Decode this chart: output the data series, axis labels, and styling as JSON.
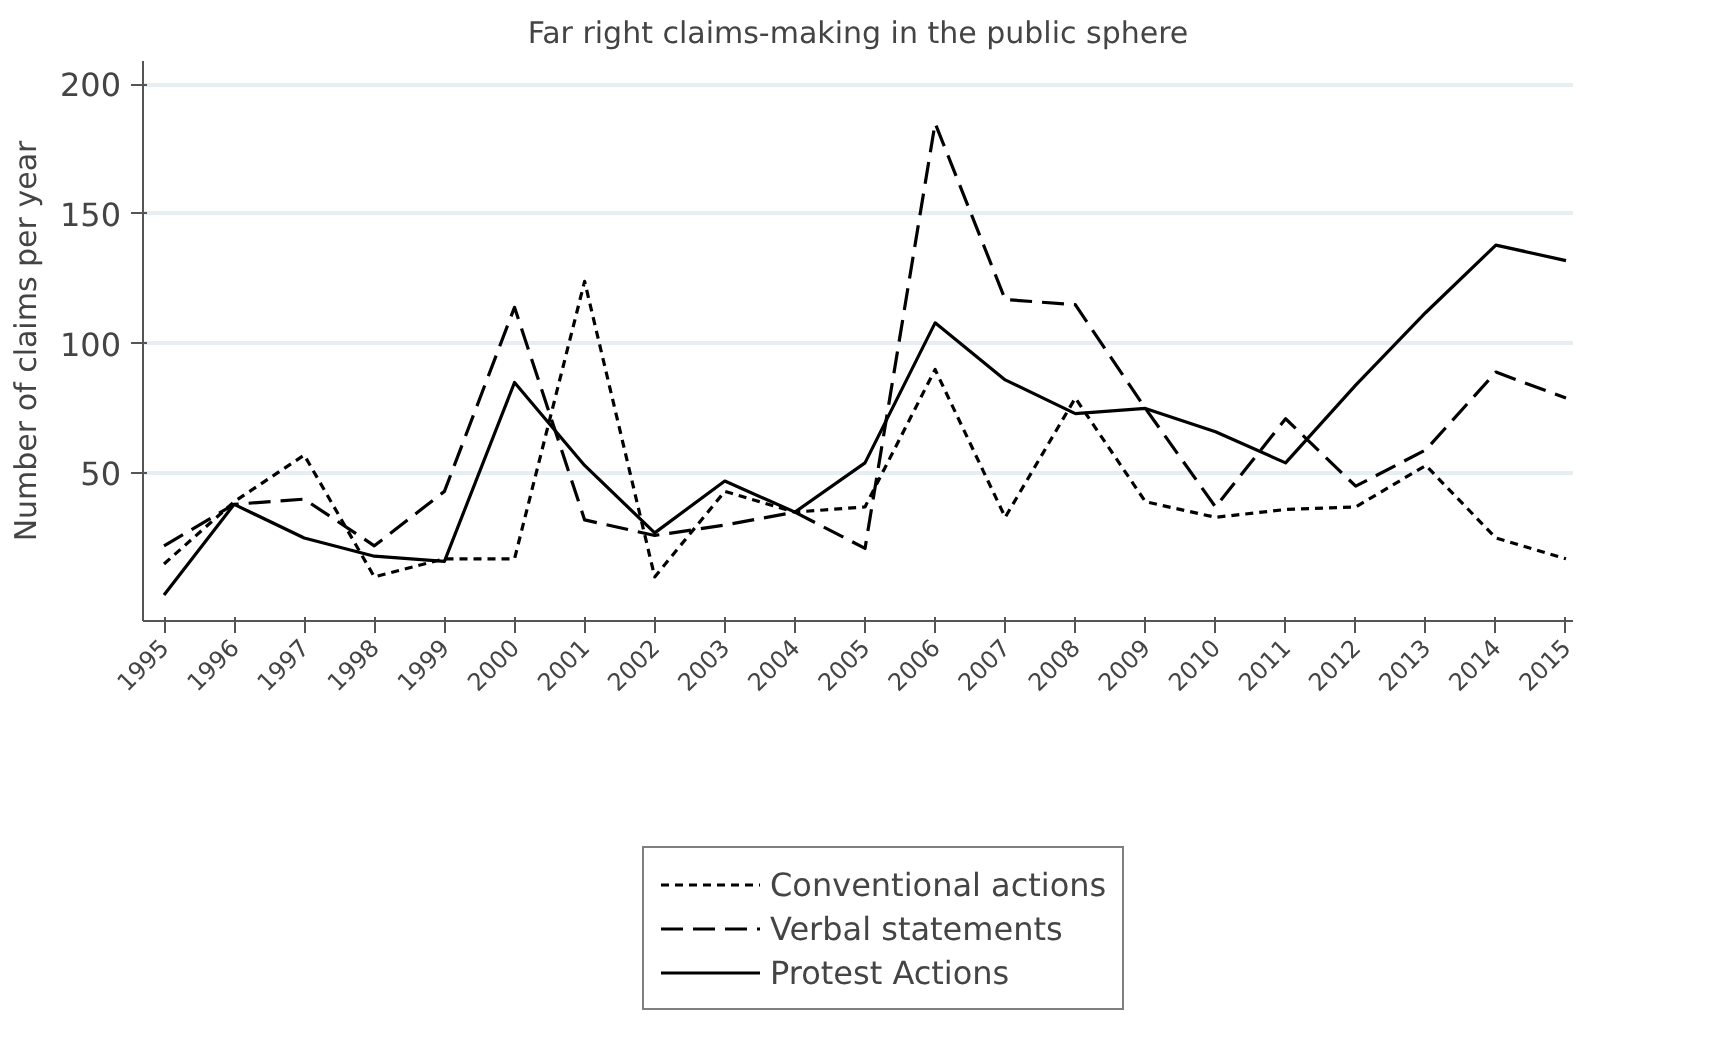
{
  "chart_data": {
    "type": "line",
    "title": "Far right claims-making in the public sphere",
    "ylabel": "Number of claims per year",
    "x": [
      1995,
      1996,
      1997,
      1998,
      1999,
      2000,
      2001,
      2002,
      2003,
      2004,
      2005,
      2006,
      2007,
      2008,
      2009,
      2010,
      2011,
      2012,
      2013,
      2014,
      2015
    ],
    "xlim": [
      1994.7,
      2015.1
    ],
    "xticks": [
      1995,
      1996,
      1997,
      1998,
      1999,
      2000,
      2001,
      2002,
      2003,
      2004,
      2005,
      2006,
      2007,
      2008,
      2009,
      2010,
      2011,
      2012,
      2013,
      2014,
      2015
    ],
    "ylim": [
      -7,
      209
    ],
    "yticks": [
      50,
      100,
      150,
      200
    ],
    "grid": "y",
    "legend": "bottom",
    "series": [
      {
        "name": "Conventional actions",
        "color": "#000000",
        "line_style": "dotted",
        "values": [
          15,
          39,
          57,
          10,
          17,
          17,
          124,
          10,
          43,
          35,
          37,
          90,
          33,
          79,
          39,
          33,
          36,
          37,
          53,
          25,
          17
        ]
      },
      {
        "name": "Verbal statements",
        "color": "#000000",
        "line_style": "dashed",
        "values": [
          22,
          38,
          40,
          22,
          43,
          114,
          32,
          26,
          30,
          35,
          21,
          185,
          117,
          115,
          75,
          37,
          71,
          45,
          59,
          89,
          79
        ]
      },
      {
        "name": "Protest Actions",
        "color": "#000000",
        "line_style": "solid",
        "values": [
          3,
          38,
          25,
          18,
          16,
          85,
          53,
          27,
          47,
          35,
          54,
          108,
          86,
          73,
          75,
          66,
          54,
          84,
          112,
          138,
          132
        ]
      }
    ]
  }
}
